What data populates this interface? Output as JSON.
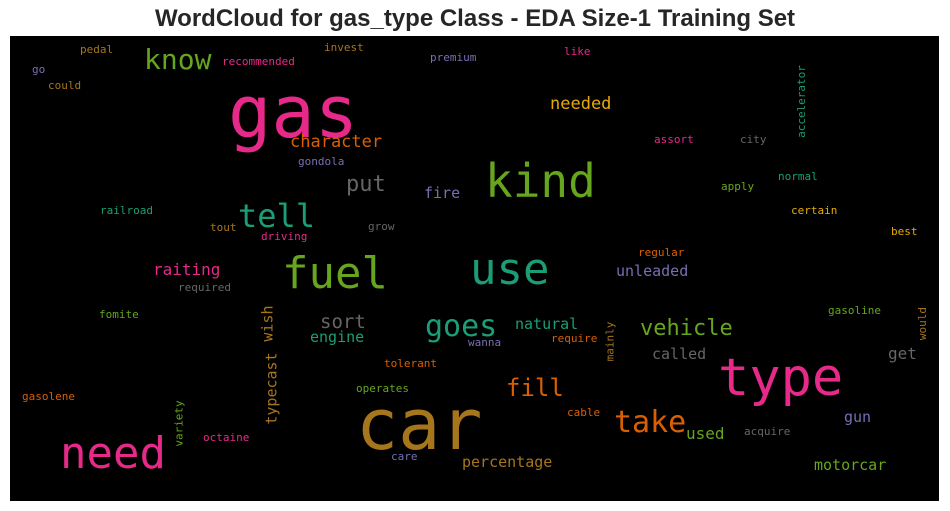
{
  "chart_data": {
    "type": "wordcloud",
    "title": "WordCloud for gas_type Class - EDA Size-1 Training Set",
    "background": "#000000",
    "palette": [
      "#e7298a",
      "#66a61e",
      "#1b9e77",
      "#d95f02",
      "#7570b3",
      "#e6ab02",
      "#a6761d",
      "#666666"
    ],
    "words": [
      {
        "text": "gas",
        "color": "#e7298a"
      },
      {
        "text": "car",
        "color": "#a6761d"
      },
      {
        "text": "type",
        "color": "#e7298a"
      },
      {
        "text": "kind",
        "color": "#66a61e"
      },
      {
        "text": "use",
        "color": "#1b9e77"
      },
      {
        "text": "fuel",
        "color": "#66a61e"
      },
      {
        "text": "need",
        "color": "#e7298a"
      },
      {
        "text": "tell",
        "color": "#1b9e77"
      },
      {
        "text": "goes",
        "color": "#1b9e77"
      },
      {
        "text": "take",
        "color": "#d95f02"
      },
      {
        "text": "know",
        "color": "#66a61e"
      },
      {
        "text": "fill",
        "color": "#d95f02"
      },
      {
        "text": "vehicle",
        "color": "#66a61e"
      },
      {
        "text": "put",
        "color": "#666666"
      },
      {
        "text": "sort",
        "color": "#666666"
      },
      {
        "text": "needed",
        "color": "#e6ab02"
      },
      {
        "text": "character",
        "color": "#d95f02"
      },
      {
        "text": "raiting",
        "color": "#e7298a"
      },
      {
        "text": "unleaded",
        "color": "#7570b3"
      },
      {
        "text": "used",
        "color": "#66a61e"
      },
      {
        "text": "get",
        "color": "#666666"
      },
      {
        "text": "motorcar",
        "color": "#66a61e"
      },
      {
        "text": "percentage",
        "color": "#a6761d"
      },
      {
        "text": "natural",
        "color": "#1b9e77"
      },
      {
        "text": "engine",
        "color": "#1b9e77"
      },
      {
        "text": "called",
        "color": "#666666"
      },
      {
        "text": "fire",
        "color": "#7570b3"
      },
      {
        "text": "gun",
        "color": "#7570b3"
      },
      {
        "text": "typecast",
        "color": "#a6761d"
      },
      {
        "text": "wish",
        "color": "#a6761d"
      },
      {
        "text": "pedal",
        "color": "#a6761d"
      },
      {
        "text": "invest",
        "color": "#a6761d"
      },
      {
        "text": "like",
        "color": "#e7298a"
      },
      {
        "text": "go",
        "color": "#7570b3"
      },
      {
        "text": "recommended",
        "color": "#e7298a"
      },
      {
        "text": "premium",
        "color": "#7570b3"
      },
      {
        "text": "could",
        "color": "#a6761d"
      },
      {
        "text": "accelerator",
        "color": "#1b9e77"
      },
      {
        "text": "assort",
        "color": "#e7298a"
      },
      {
        "text": "city",
        "color": "#666666"
      },
      {
        "text": "gondola",
        "color": "#7570b3"
      },
      {
        "text": "normal",
        "color": "#1b9e77"
      },
      {
        "text": "apply",
        "color": "#66a61e"
      },
      {
        "text": "railroad",
        "color": "#1b9e77"
      },
      {
        "text": "certain",
        "color": "#e6ab02"
      },
      {
        "text": "tout",
        "color": "#a6761d"
      },
      {
        "text": "driving",
        "color": "#e7298a"
      },
      {
        "text": "grow",
        "color": "#666666"
      },
      {
        "text": "best",
        "color": "#e6ab02"
      },
      {
        "text": "regular",
        "color": "#d95f02"
      },
      {
        "text": "required",
        "color": "#666666"
      },
      {
        "text": "fomite",
        "color": "#66a61e"
      },
      {
        "text": "gasoline",
        "color": "#66a61e"
      },
      {
        "text": "would",
        "color": "#a6761d"
      },
      {
        "text": "mainly",
        "color": "#a6761d"
      },
      {
        "text": "wanna",
        "color": "#7570b3"
      },
      {
        "text": "require",
        "color": "#d95f02"
      },
      {
        "text": "tolerant",
        "color": "#d95f02"
      },
      {
        "text": "operates",
        "color": "#66a61e"
      },
      {
        "text": "gasolene",
        "color": "#d95f02"
      },
      {
        "text": "variety",
        "color": "#66a61e"
      },
      {
        "text": "octaine",
        "color": "#e7298a"
      },
      {
        "text": "cable",
        "color": "#d95f02"
      },
      {
        "text": "acquire",
        "color": "#666666"
      },
      {
        "text": "care",
        "color": "#7570b3"
      }
    ]
  }
}
